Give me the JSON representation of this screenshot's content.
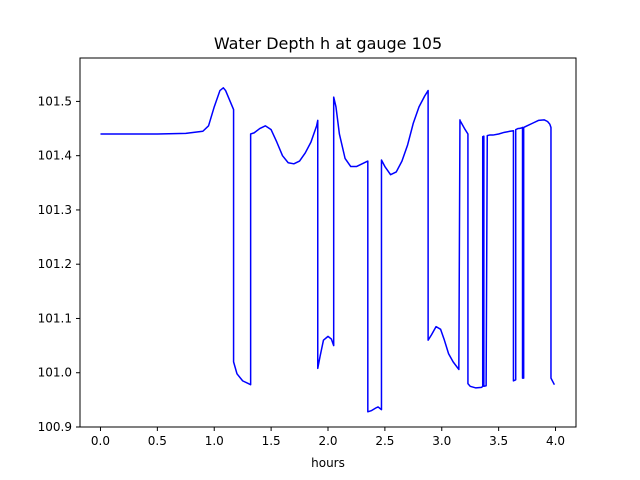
{
  "chart_data": {
    "type": "line",
    "title": "Water Depth h at gauge 105",
    "xlabel": "hours",
    "ylabel": "",
    "xlim": [
      -0.18,
      4.18
    ],
    "ylim": [
      100.9,
      101.58
    ],
    "x_ticks": [
      0.0,
      0.5,
      1.0,
      1.5,
      2.0,
      2.5,
      3.0,
      3.5,
      4.0
    ],
    "x_tick_labels": [
      "0.0",
      "0.5",
      "1.0",
      "1.5",
      "2.0",
      "2.5",
      "3.0",
      "3.5",
      "4.0"
    ],
    "y_ticks": [
      100.9,
      101.0,
      101.1,
      101.2,
      101.3,
      101.4,
      101.5
    ],
    "y_tick_labels": [
      "100.9",
      "101.0",
      "101.1",
      "101.2",
      "101.3",
      "101.4",
      "101.5"
    ],
    "grid": false,
    "legend": "none",
    "colors": {
      "series": "#0000ff",
      "axes": "#000000",
      "background": "#ffffff"
    },
    "series": [
      {
        "name": "",
        "x": [
          0.0,
          0.5,
          0.75,
          0.9,
          0.95,
          1.0,
          1.05,
          1.08,
          1.1,
          1.14,
          1.17,
          1.17,
          1.2,
          1.25,
          1.3,
          1.32,
          1.32,
          1.35,
          1.4,
          1.45,
          1.5,
          1.55,
          1.6,
          1.65,
          1.7,
          1.75,
          1.8,
          1.85,
          1.9,
          1.91,
          1.91,
          1.93,
          1.96,
          2.0,
          2.03,
          2.05,
          2.05,
          2.07,
          2.1,
          2.15,
          2.2,
          2.25,
          2.3,
          2.35,
          2.35,
          2.38,
          2.42,
          2.44,
          2.47,
          2.47,
          2.5,
          2.55,
          2.6,
          2.65,
          2.7,
          2.75,
          2.8,
          2.85,
          2.88,
          2.88,
          2.91,
          2.95,
          2.99,
          3.02,
          3.06,
          3.1,
          3.15,
          3.16,
          3.16,
          3.2,
          3.23,
          3.23,
          3.25,
          3.3,
          3.35,
          3.36,
          3.36,
          3.37,
          3.37,
          3.39,
          3.4,
          3.42,
          3.45,
          3.5,
          3.55,
          3.6,
          3.63,
          3.63,
          3.64,
          3.65,
          3.65,
          3.67,
          3.68,
          3.7,
          3.71,
          3.71,
          3.72,
          3.72,
          3.75,
          3.8,
          3.85,
          3.9,
          3.93,
          3.95,
          3.96,
          3.96,
          3.99
        ],
        "y": [
          101.44,
          101.44,
          101.441,
          101.445,
          101.455,
          101.49,
          101.52,
          101.525,
          101.52,
          101.5,
          101.485,
          101.02,
          100.998,
          100.985,
          100.98,
          100.978,
          101.44,
          101.442,
          101.45,
          101.455,
          101.448,
          101.425,
          101.4,
          101.387,
          101.385,
          101.39,
          101.405,
          101.425,
          101.455,
          101.465,
          101.008,
          101.03,
          101.06,
          101.067,
          101.062,
          101.05,
          101.508,
          101.49,
          101.44,
          101.395,
          101.38,
          101.38,
          101.385,
          101.39,
          100.928,
          100.93,
          100.935,
          100.937,
          100.932,
          101.392,
          101.38,
          101.365,
          101.37,
          101.39,
          101.42,
          101.46,
          101.49,
          101.51,
          101.52,
          101.06,
          101.07,
          101.085,
          101.08,
          101.062,
          101.035,
          101.02,
          101.006,
          101.466,
          101.465,
          101.45,
          101.44,
          100.98,
          100.975,
          100.972,
          100.973,
          100.975,
          101.435,
          101.436,
          100.975,
          100.976,
          101.437,
          101.438,
          101.438,
          101.44,
          101.443,
          101.445,
          101.446,
          100.985,
          100.986,
          100.987,
          101.448,
          101.45,
          101.45,
          101.451,
          101.452,
          100.99,
          100.99,
          101.452,
          101.455,
          101.46,
          101.465,
          101.466,
          101.463,
          101.458,
          101.452,
          100.99,
          100.978
        ]
      }
    ]
  }
}
